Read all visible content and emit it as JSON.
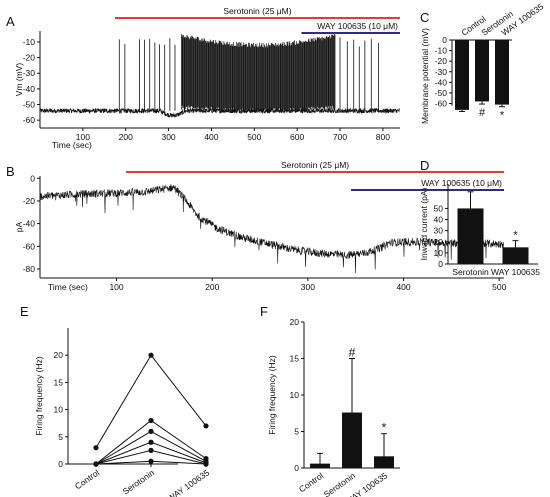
{
  "chart_data": [
    {
      "panel": "A",
      "type": "line",
      "xlabel": "Time (sec)",
      "ylabel": "Vm (mV)",
      "xticks": [
        100,
        200,
        300,
        400,
        500,
        600,
        700,
        800
      ],
      "yticks": [
        -10,
        -20,
        -30,
        -40,
        -50,
        -60
      ],
      "xlim": [
        0,
        840
      ],
      "ylim": [
        -65,
        -3
      ],
      "drug_bars": [
        {
          "label": "Serotonin (25 μM)",
          "start": 175,
          "end": 840,
          "color": "#e53935"
        },
        {
          "label": "WAY 100635 (10 μM)",
          "start": 610,
          "end": 840,
          "color": "#2e2a8c"
        }
      ],
      "trace": {
        "baseline": -54,
        "fast_firing": [
          330,
          690
        ],
        "scattered_spikes": [
          185,
          198,
          232,
          244,
          256,
          268,
          279,
          291,
          303,
          315,
          700,
          717,
          732,
          745,
          758,
          773,
          790
        ],
        "spike_peak": -10
      }
    },
    {
      "panel": "B",
      "type": "line",
      "xlabel": "Time (sec)",
      "ylabel": "pA",
      "xticks": [
        100,
        200,
        300,
        400,
        500
      ],
      "yticks": [
        0,
        -20,
        -40,
        -60,
        -80
      ],
      "xlim": [
        20,
        505
      ],
      "ylim": [
        -88,
        2
      ],
      "drug_bars": [
        {
          "label": "Serotonin (25 μM)",
          "start": 110,
          "end": 505,
          "color": "#e53935"
        },
        {
          "label": "WAY 100635 (10 μM)",
          "start": 345,
          "end": 505,
          "color": "#2e2a8c"
        }
      ],
      "trace": {
        "x": [
          20,
          60,
          100,
          130,
          160,
          170,
          185,
          205,
          230,
          260,
          285,
          310,
          340,
          360,
          375,
          385,
          400,
          450,
          505
        ],
        "y": [
          -16,
          -14,
          -13,
          -12,
          -8,
          -17,
          -33,
          -44,
          -52,
          -58,
          -63,
          -66,
          -68,
          -66,
          -62,
          -57,
          -56,
          -57,
          -58
        ]
      }
    },
    {
      "panel": "C",
      "type": "bar",
      "ylabel": "Membrane potential (mV)",
      "categories": [
        "Control",
        "Serotonin",
        "WAY 100635"
      ],
      "values": [
        -66,
        -58,
        -61
      ],
      "errors": [
        1.5,
        2.5,
        2
      ],
      "yticks": [
        0,
        -10,
        -20,
        -30,
        -40,
        -50,
        -60
      ],
      "ylim": [
        -68,
        0
      ],
      "annotations": [
        {
          "category": "Serotonin",
          "mark": "#"
        },
        {
          "category": "WAY 100635",
          "mark": "*"
        }
      ]
    },
    {
      "panel": "D",
      "type": "bar",
      "ylabel": "Inward current (pA)",
      "categories": [
        "Serotonin",
        "WAY 100635"
      ],
      "values": [
        50,
        15
      ],
      "errors": [
        15,
        6
      ],
      "yticks": [
        0,
        10,
        20,
        30,
        40,
        50
      ],
      "ylim": [
        0,
        72
      ],
      "annotations": [
        {
          "category": "WAY 100635",
          "mark": "*"
        }
      ]
    },
    {
      "panel": "E",
      "type": "line",
      "ylabel": "Firing frequency (Hz)",
      "categories": [
        "Control",
        "Serotonin",
        "WAY 100635"
      ],
      "yticks": [
        0,
        5,
        10,
        15,
        20
      ],
      "ylim": [
        0,
        25
      ],
      "series": [
        {
          "values": [
            3,
            20,
            7
          ]
        },
        {
          "values": [
            0,
            8,
            1
          ]
        },
        {
          "values": [
            0,
            6,
            0.5
          ]
        },
        {
          "values": [
            0,
            4,
            0.2
          ]
        },
        {
          "values": [
            0,
            2.5,
            0
          ]
        },
        {
          "values": [
            0,
            0.5,
            0
          ]
        }
      ]
    },
    {
      "panel": "F",
      "type": "bar",
      "ylabel": "Firing frequency (Hz)",
      "categories": [
        "Control",
        "Serotonin",
        "WAY 100635"
      ],
      "values": [
        0.6,
        7.6,
        1.6
      ],
      "errors": [
        1.4,
        7.4,
        3.1
      ],
      "yticks": [
        0,
        5,
        10,
        15,
        20
      ],
      "ylim": [
        0,
        20
      ],
      "annotations": [
        {
          "category": "Serotonin",
          "mark": "#"
        },
        {
          "category": "WAY 100635",
          "mark": "*"
        }
      ]
    }
  ]
}
